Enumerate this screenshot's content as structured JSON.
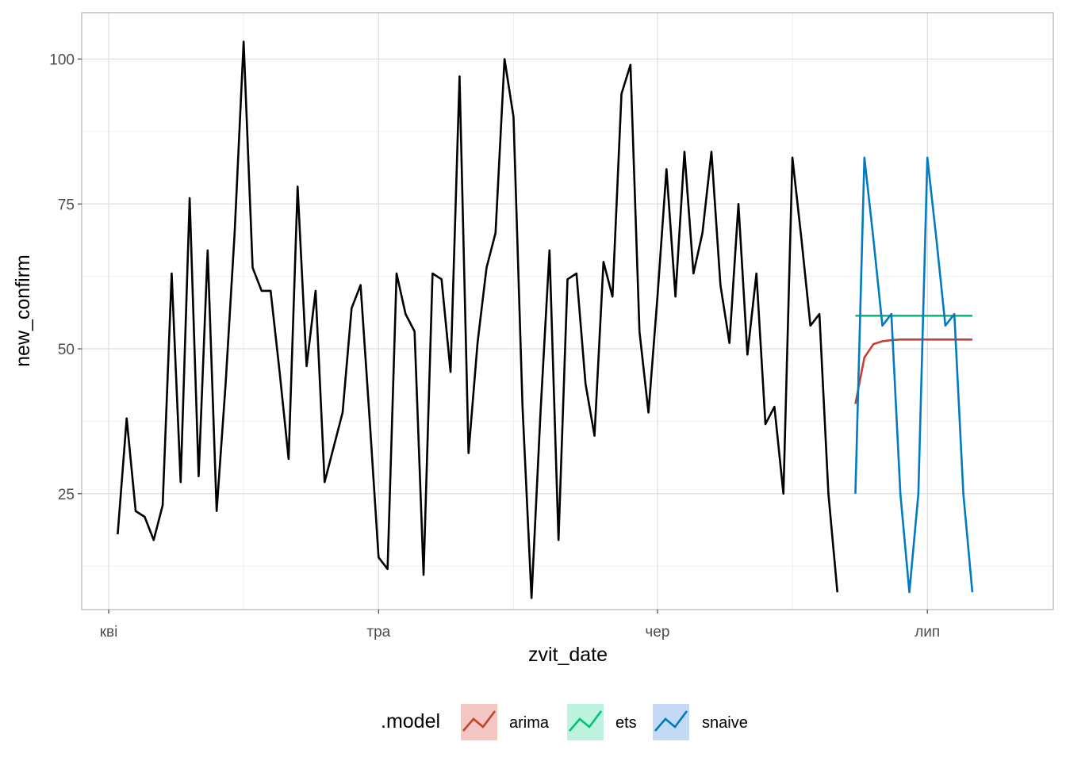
{
  "chart_data": {
    "type": "line",
    "title": "",
    "xlabel": "zvit_date",
    "ylabel": "new_confirm",
    "x_axis": {
      "range": [
        "2020-03-29",
        "2020-07-15"
      ],
      "ticks": [
        {
          "date": "2020-04-01",
          "label": "кві"
        },
        {
          "date": "2020-05-01",
          "label": "тра"
        },
        {
          "date": "2020-06-01",
          "label": "чер"
        },
        {
          "date": "2020-07-01",
          "label": "лип"
        }
      ],
      "minor_ticks": [
        "2020-04-16",
        "2020-05-16",
        "2020-06-16"
      ]
    },
    "y_axis": {
      "range": [
        5,
        108
      ],
      "ticks": [
        25,
        50,
        75,
        100
      ],
      "minor_ticks": [
        12.5,
        37.5,
        62.5,
        87.5
      ]
    },
    "grid": true,
    "observed": {
      "start_date": "2020-04-02",
      "color": "#000000",
      "values": [
        18,
        38,
        22,
        21,
        17,
        23,
        63,
        27,
        76,
        28,
        67,
        22,
        44,
        70,
        103,
        64,
        60,
        60,
        46,
        31,
        78,
        47,
        60,
        27,
        33,
        39,
        57,
        61,
        38,
        14,
        12,
        63,
        56,
        53,
        11,
        63,
        62,
        46,
        97,
        32,
        51,
        64,
        70,
        100,
        90,
        40,
        7,
        39,
        67,
        17,
        62,
        63,
        44,
        35,
        65,
        59,
        94,
        99,
        53,
        39,
        59,
        81,
        59,
        84,
        63,
        70,
        84,
        61,
        51,
        75,
        49,
        63,
        37,
        40,
        25,
        83,
        69,
        54,
        56,
        25,
        8
      ]
    },
    "forecast_start_date": "2020-06-23",
    "series": [
      {
        "name": "arima",
        "color": "#C5412F",
        "values": [
          40.5,
          48.5,
          50.8,
          51.3,
          51.5,
          51.6,
          51.6,
          51.6,
          51.6,
          51.6,
          51.6,
          51.6,
          51.6,
          51.6
        ]
      },
      {
        "name": "ets",
        "color": "#00C17E",
        "values": [
          55.7,
          55.7,
          55.7,
          55.7,
          55.7,
          55.7,
          55.7,
          55.7,
          55.7,
          55.7,
          55.7,
          55.7,
          55.7,
          55.7
        ]
      },
      {
        "name": "snaive",
        "color": "#007BC2",
        "values": [
          25,
          83,
          69,
          54,
          56,
          25,
          8,
          25,
          83,
          69,
          54,
          56,
          25,
          8
        ]
      }
    ],
    "legend": {
      "title": ".model",
      "position": "bottom",
      "fills": [
        "#F4C7C2",
        "#BDF3DE",
        "#C3D9F4"
      ]
    }
  }
}
